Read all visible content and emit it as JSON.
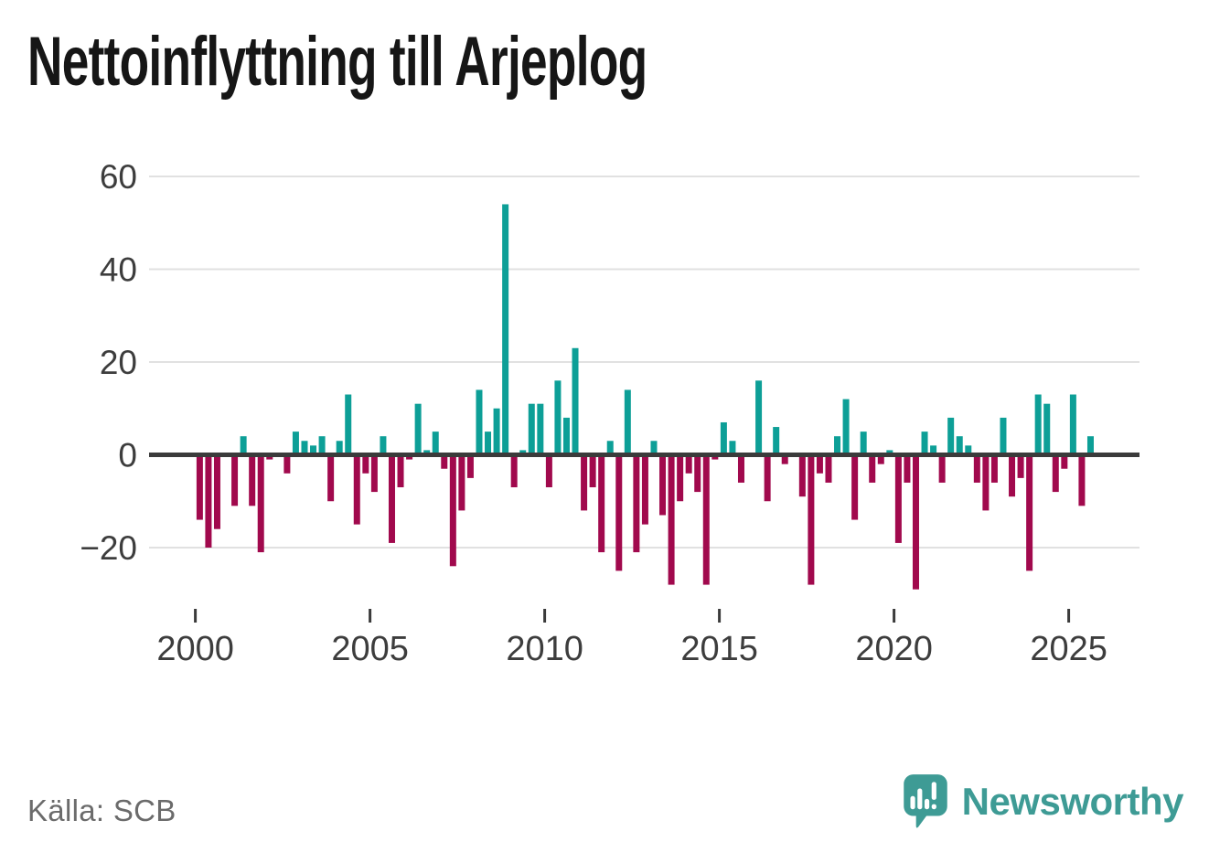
{
  "title": "Nettoinflyttning till Arjeplog",
  "footer": {
    "source": "Källa: SCB",
    "logo_text": "Newsworthy"
  },
  "colors": {
    "positive": "#0d9f97",
    "negative": "#a1094d",
    "axis": "#3b3b3b",
    "grid": "#e1e1e1",
    "tick_label": "#3d3d3d",
    "title": "#161616",
    "source": "#6b6b6b",
    "logo": "#3e9b95"
  },
  "chart_data": {
    "type": "bar",
    "title": "Nettoinflyttning till Arjeplog",
    "frequency": "quarterly",
    "start": "2000-Q1",
    "end": "2025-Q3",
    "grid": true,
    "legend": false,
    "ylim": [
      -32,
      62
    ],
    "y_tick_values": [
      60,
      40,
      20,
      0,
      -20
    ],
    "y_tick_labels": [
      "60",
      "40",
      "20",
      "0",
      "−20"
    ],
    "x_tick_years": [
      2000,
      2005,
      2010,
      2015,
      2020,
      2025
    ],
    "x_tick_labels": [
      "2000",
      "2005",
      "2010",
      "2015",
      "2020",
      "2025"
    ],
    "values": [
      -14,
      -20,
      -16,
      0,
      -11,
      4,
      -11,
      -21,
      -1,
      0,
      -4,
      5,
      3,
      2,
      4,
      -10,
      3,
      13,
      -15,
      -4,
      -8,
      4,
      -19,
      -7,
      -1,
      11,
      1,
      5,
      -3,
      -24,
      -12,
      -5,
      14,
      5,
      10,
      54,
      -7,
      1,
      11,
      11,
      -7,
      16,
      8,
      23,
      -12,
      -7,
      -21,
      3,
      -25,
      14,
      -21,
      -15,
      3,
      -13,
      -28,
      -10,
      -4,
      -8,
      -28,
      -1,
      7,
      3,
      -6,
      0,
      16,
      -10,
      6,
      -2,
      0,
      -9,
      -28,
      -4,
      -6,
      4,
      12,
      -14,
      5,
      -6,
      -2,
      1,
      -19,
      -6,
      -29,
      5,
      2,
      -6,
      8,
      4,
      2,
      -6,
      -12,
      -6,
      8,
      -9,
      -5,
      -25,
      13,
      11,
      -8,
      -3,
      13,
      -11,
      4
    ]
  }
}
